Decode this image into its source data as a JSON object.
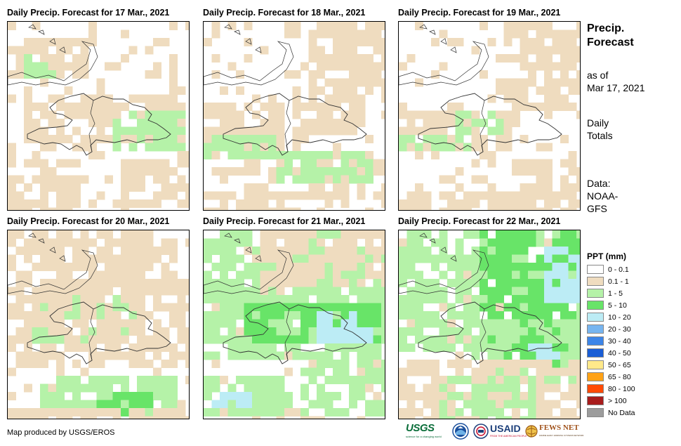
{
  "panels": [
    {
      "title": "Daily Precip. Forecast for 17 Mar., 2021",
      "seed": 17,
      "zones": [
        [
          0.05,
          0.35,
          0.95,
          0.6,
          "#efdcbf"
        ],
        [
          0.55,
          0.45,
          0.95,
          0.65,
          "#b5f2a8"
        ],
        [
          0.0,
          0.05,
          0.4,
          0.25,
          "#efdcbf"
        ],
        [
          0.0,
          0.7,
          0.35,
          1.0,
          "#efdcbf"
        ],
        [
          0.6,
          0.7,
          1.0,
          0.95,
          "#efdcbf"
        ],
        [
          0.05,
          0.15,
          0.25,
          0.25,
          "#b5f2a8"
        ]
      ]
    },
    {
      "title": "Daily Precip. Forecast for 18 Mar., 2021",
      "seed": 18,
      "zones": [
        [
          0.0,
          0.4,
          0.4,
          0.65,
          "#efdcbf"
        ],
        [
          0.0,
          0.55,
          0.35,
          0.68,
          "#b5f2a8"
        ],
        [
          0.2,
          0.7,
          1.0,
          0.9,
          "#efdcbf"
        ],
        [
          0.35,
          0.65,
          0.9,
          0.8,
          "#b5f2a8"
        ],
        [
          0.0,
          0.85,
          0.5,
          1.0,
          "#efdcbf"
        ],
        [
          0.55,
          0.0,
          1.0,
          0.35,
          "#efdcbf"
        ],
        [
          0.45,
          0.35,
          0.85,
          0.55,
          "#efdcbf"
        ]
      ]
    },
    {
      "title": "Daily Precip. Forecast for 19 Mar., 2021",
      "seed": 19,
      "zones": [
        [
          0.55,
          0.0,
          1.0,
          0.45,
          "#efdcbf"
        ],
        [
          0.0,
          0.45,
          0.6,
          0.65,
          "#efdcbf"
        ],
        [
          0.0,
          0.55,
          0.35,
          0.65,
          "#b5f2a8"
        ],
        [
          0.3,
          0.45,
          0.55,
          0.55,
          "#b5f2a8"
        ],
        [
          0.0,
          0.85,
          1.0,
          1.0,
          "#efdcbf"
        ],
        [
          0.6,
          0.7,
          1.0,
          0.9,
          "#efdcbf"
        ]
      ]
    },
    {
      "title": "Daily Precip. Forecast for 20 Mar., 2021",
      "seed": 20,
      "zones": [
        [
          0.0,
          0.0,
          0.9,
          0.25,
          "#efdcbf"
        ],
        [
          0.1,
          0.3,
          0.7,
          0.55,
          "#b5f2a8"
        ],
        [
          0.0,
          0.25,
          1.0,
          0.7,
          "#efdcbf"
        ],
        [
          0.15,
          0.75,
          0.9,
          0.95,
          "#b5f2a8"
        ],
        [
          0.45,
          0.82,
          0.75,
          0.95,
          "#68e468"
        ],
        [
          0.0,
          0.9,
          1.0,
          1.0,
          "#efdcbf"
        ]
      ]
    },
    {
      "title": "Daily Precip. Forecast for 21 Mar., 2021",
      "seed": 21,
      "zones": [
        [
          0.0,
          0.0,
          1.0,
          0.35,
          "#b5f2a8"
        ],
        [
          0.0,
          0.3,
          1.0,
          0.65,
          "#b5f2a8"
        ],
        [
          0.2,
          0.35,
          0.95,
          0.55,
          "#68e468"
        ],
        [
          0.6,
          0.4,
          0.9,
          0.55,
          "#bcecf5"
        ],
        [
          0.0,
          0.75,
          0.45,
          0.95,
          "#b5f2a8"
        ],
        [
          0.0,
          0.8,
          0.25,
          0.9,
          "#bcecf5"
        ],
        [
          0.5,
          0.65,
          1.0,
          0.95,
          "#b5f2a8"
        ],
        [
          0.3,
          0.0,
          1.0,
          0.25,
          "#efdcbf"
        ]
      ]
    },
    {
      "title": "Daily Precip. Forecast for 22 Mar., 2021",
      "seed": 22,
      "zones": [
        [
          0.0,
          0.0,
          1.0,
          0.6,
          "#b5f2a8"
        ],
        [
          0.4,
          0.0,
          1.0,
          0.55,
          "#68e468"
        ],
        [
          0.75,
          0.05,
          1.0,
          0.35,
          "#bcecf5"
        ],
        [
          0.35,
          0.45,
          1.0,
          0.75,
          "#b5f2a8"
        ],
        [
          0.55,
          0.55,
          0.9,
          0.7,
          "#68e468"
        ],
        [
          0.65,
          0.55,
          0.85,
          0.65,
          "#bcecf5"
        ],
        [
          0.0,
          0.65,
          1.0,
          1.0,
          "#efdcbf"
        ],
        [
          0.2,
          0.75,
          0.7,
          1.0,
          "#b5f2a8"
        ]
      ]
    }
  ],
  "side": {
    "title_line1": "Precip.",
    "title_line2": "Forecast",
    "as_of_line1": "as of",
    "as_of_line2": "Mar 17, 2021",
    "daily_line1": "Daily",
    "daily_line2": "Totals",
    "data_line1": "Data:",
    "data_line2": "NOAA-",
    "data_line3": "GFS"
  },
  "legend": {
    "title": "PPT (mm)",
    "items": [
      {
        "label": "0 - 0.1",
        "color": "#ffffff"
      },
      {
        "label": "0.1 - 1",
        "color": "#efdcbf"
      },
      {
        "label": "1 - 5",
        "color": "#b5f2a8"
      },
      {
        "label": "5 - 10",
        "color": "#68e468"
      },
      {
        "label": "10 - 20",
        "color": "#bcecf5"
      },
      {
        "label": "20 - 30",
        "color": "#77b5f0"
      },
      {
        "label": "30 - 40",
        "color": "#3d85e8"
      },
      {
        "label": "40 - 50",
        "color": "#1a5ed6"
      },
      {
        "label": "50 - 65",
        "color": "#ffe98a"
      },
      {
        "label": "65 - 80",
        "color": "#ffa216"
      },
      {
        "label": "80 - 100",
        "color": "#ff4a05"
      },
      {
        "label": "> 100",
        "color": "#a81c1c"
      },
      {
        "label": "No Data",
        "color": "#9c9c9c"
      }
    ]
  },
  "credit": "Map produced by USGS/EROS",
  "logos": {
    "usgs": "USGS",
    "usgs_tagline": "science for a changing world",
    "usaid": "USAID",
    "usaid_tagline": "FROM THE AMERICAN PEOPLE",
    "fewsnet": "FEWS NET",
    "fewsnet_tagline": "FAMINE EARLY WARNING SYSTEMS NETWORK"
  }
}
